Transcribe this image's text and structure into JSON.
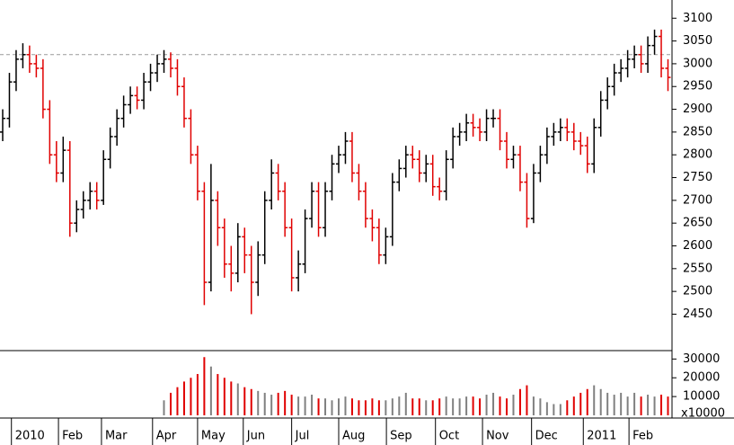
{
  "chart_data": {
    "type": "ohlc",
    "x": [
      0,
      1,
      2,
      3,
      4,
      5,
      6,
      7,
      8,
      9,
      10,
      11,
      12,
      13,
      14,
      15,
      16,
      17,
      18,
      19,
      20,
      21,
      22,
      23,
      24,
      25,
      26,
      27,
      28,
      29,
      30,
      31,
      32,
      33,
      34,
      35,
      36,
      37,
      38,
      39,
      40,
      41,
      42,
      43,
      44,
      45,
      46,
      47,
      48,
      49,
      50,
      51,
      52,
      53,
      54,
      55,
      56,
      57,
      58,
      59,
      60,
      61,
      62,
      63,
      64,
      65,
      66,
      67,
      68,
      69,
      70,
      71,
      72,
      73,
      74,
      75,
      76,
      77,
      78,
      79,
      80,
      81,
      82,
      83,
      84,
      85,
      86,
      87,
      88,
      89,
      90,
      91,
      92,
      93,
      94,
      95,
      96,
      97,
      98,
      99
    ],
    "open": [
      2850,
      2880,
      2960,
      3010,
      3020,
      3000,
      2990,
      2900,
      2800,
      2760,
      2810,
      2650,
      2680,
      2700,
      2720,
      2700,
      2790,
      2840,
      2880,
      2910,
      2930,
      2920,
      2960,
      2980,
      3000,
      3010,
      2990,
      2950,
      2880,
      2800,
      2720,
      2520,
      2700,
      2640,
      2560,
      2540,
      2620,
      2580,
      2520,
      2580,
      2700,
      2760,
      2720,
      2640,
      2530,
      2560,
      2660,
      2720,
      2640,
      2720,
      2780,
      2800,
      2830,
      2760,
      2720,
      2660,
      2640,
      2580,
      2620,
      2740,
      2770,
      2800,
      2790,
      2760,
      2780,
      2730,
      2720,
      2790,
      2840,
      2850,
      2870,
      2860,
      2850,
      2880,
      2880,
      2830,
      2790,
      2800,
      2740,
      2660,
      2760,
      2800,
      2840,
      2850,
      2860,
      2850,
      2830,
      2820,
      2780,
      2860,
      2920,
      2950,
      2980,
      2990,
      3010,
      3020,
      3000,
      3040,
      3060,
      2990
    ],
    "high": [
      2900,
      2980,
      3030,
      3045,
      3040,
      3020,
      3010,
      2920,
      2830,
      2840,
      2830,
      2700,
      2720,
      2740,
      2740,
      2810,
      2860,
      2900,
      2930,
      2950,
      2950,
      2980,
      3000,
      3020,
      3030,
      3025,
      3010,
      2970,
      2900,
      2820,
      2740,
      2780,
      2720,
      2660,
      2600,
      2650,
      2640,
      2600,
      2610,
      2720,
      2790,
      2780,
      2740,
      2660,
      2590,
      2680,
      2740,
      2740,
      2740,
      2800,
      2820,
      2850,
      2850,
      2780,
      2740,
      2680,
      2660,
      2640,
      2760,
      2790,
      2820,
      2820,
      2810,
      2800,
      2800,
      2750,
      2810,
      2860,
      2870,
      2890,
      2890,
      2880,
      2900,
      2900,
      2900,
      2850,
      2820,
      2820,
      2760,
      2780,
      2820,
      2860,
      2870,
      2880,
      2880,
      2870,
      2850,
      2840,
      2880,
      2940,
      2970,
      3000,
      3010,
      3030,
      3040,
      3040,
      3060,
      3075,
      3075,
      3010
    ],
    "low": [
      2830,
      2860,
      2940,
      2990,
      2980,
      2970,
      2880,
      2780,
      2740,
      2740,
      2620,
      2630,
      2660,
      2680,
      2680,
      2690,
      2770,
      2820,
      2860,
      2890,
      2900,
      2900,
      2940,
      2960,
      2980,
      2970,
      2930,
      2860,
      2780,
      2700,
      2470,
      2500,
      2600,
      2530,
      2500,
      2520,
      2540,
      2450,
      2490,
      2560,
      2680,
      2700,
      2620,
      2500,
      2500,
      2540,
      2640,
      2620,
      2620,
      2700,
      2760,
      2780,
      2740,
      2700,
      2640,
      2610,
      2560,
      2560,
      2600,
      2720,
      2750,
      2770,
      2740,
      2740,
      2710,
      2700,
      2700,
      2770,
      2820,
      2830,
      2840,
      2830,
      2830,
      2860,
      2810,
      2770,
      2770,
      2720,
      2640,
      2650,
      2740,
      2780,
      2820,
      2830,
      2830,
      2810,
      2800,
      2760,
      2760,
      2840,
      2900,
      2930,
      2960,
      2970,
      2990,
      2980,
      2980,
      3020,
      2970,
      2940
    ],
    "close": [
      2880,
      2960,
      3010,
      3020,
      3000,
      2990,
      2900,
      2800,
      2760,
      2810,
      2650,
      2680,
      2700,
      2720,
      2700,
      2790,
      2840,
      2880,
      2910,
      2930,
      2920,
      2960,
      2980,
      3000,
      3010,
      2990,
      2950,
      2880,
      2800,
      2720,
      2520,
      2700,
      2640,
      2560,
      2540,
      2620,
      2580,
      2520,
      2580,
      2700,
      2760,
      2720,
      2640,
      2530,
      2560,
      2660,
      2720,
      2640,
      2720,
      2780,
      2800,
      2830,
      2760,
      2720,
      2660,
      2640,
      2580,
      2620,
      2740,
      2770,
      2800,
      2790,
      2760,
      2780,
      2730,
      2720,
      2790,
      2840,
      2850,
      2870,
      2860,
      2850,
      2880,
      2880,
      2830,
      2790,
      2800,
      2740,
      2660,
      2760,
      2800,
      2840,
      2850,
      2860,
      2850,
      2830,
      2820,
      2780,
      2860,
      2920,
      2950,
      2980,
      2990,
      3010,
      3020,
      3000,
      3040,
      3060,
      2990,
      2970
    ],
    "up_color": "#000000",
    "down_color": "#e00000",
    "xlim": [
      -0.4,
      99.6
    ],
    "xticks": [
      {
        "value": 1.3,
        "label": "2010"
      },
      {
        "value": 8.3,
        "label": "Feb"
      },
      {
        "value": 14.7,
        "label": "Mar"
      },
      {
        "value": 22.3,
        "label": "Apr"
      },
      {
        "value": 29,
        "label": "May"
      },
      {
        "value": 35.8,
        "label": "Jun"
      },
      {
        "value": 43,
        "label": "Jul"
      },
      {
        "value": 50,
        "label": "Aug"
      },
      {
        "value": 57.1,
        "label": "Sep"
      },
      {
        "value": 64.4,
        "label": "Oct"
      },
      {
        "value": 71.4,
        "label": "Nov"
      },
      {
        "value": 78.7,
        "label": "Dec"
      },
      {
        "value": 86.4,
        "label": "2011"
      },
      {
        "value": 93.2,
        "label": "Feb"
      }
    ],
    "ylim": [
      2370,
      3140
    ],
    "yticks": [
      2450,
      2500,
      2550,
      2600,
      2650,
      2700,
      2750,
      2800,
      2850,
      2900,
      2950,
      3000,
      3050,
      3100
    ],
    "reference_line": 3020,
    "volume": {
      "values": [
        null,
        null,
        null,
        null,
        null,
        null,
        null,
        null,
        null,
        null,
        null,
        null,
        null,
        null,
        null,
        null,
        null,
        null,
        null,
        null,
        null,
        null,
        null,
        null,
        8000,
        12000,
        15000,
        18000,
        20000,
        22000,
        31000,
        26000,
        22000,
        20000,
        18000,
        17000,
        15000,
        14000,
        13000,
        12000,
        11000,
        12000,
        13000,
        11000,
        10000,
        10000,
        11000,
        9000,
        9000,
        8000,
        9000,
        10000,
        9000,
        8000,
        8000,
        9000,
        8000,
        8000,
        9000,
        10000,
        12000,
        9000,
        9000,
        8000,
        8000,
        9000,
        10000,
        9000,
        9000,
        10000,
        10000,
        9000,
        11000,
        12000,
        10000,
        9000,
        11000,
        14000,
        16000,
        10000,
        9000,
        7000,
        6000,
        6000,
        8000,
        10000,
        12000,
        14000,
        16000,
        14000,
        12000,
        11000,
        12000,
        10000,
        12000,
        10000,
        11000,
        10000,
        11000,
        10000
      ],
      "ylim": [
        0,
        34000
      ],
      "yticks": [
        10000,
        20000,
        30000
      ],
      "unit_label": "x10000",
      "up_color": "#808080",
      "down_color": "#e00000"
    }
  }
}
